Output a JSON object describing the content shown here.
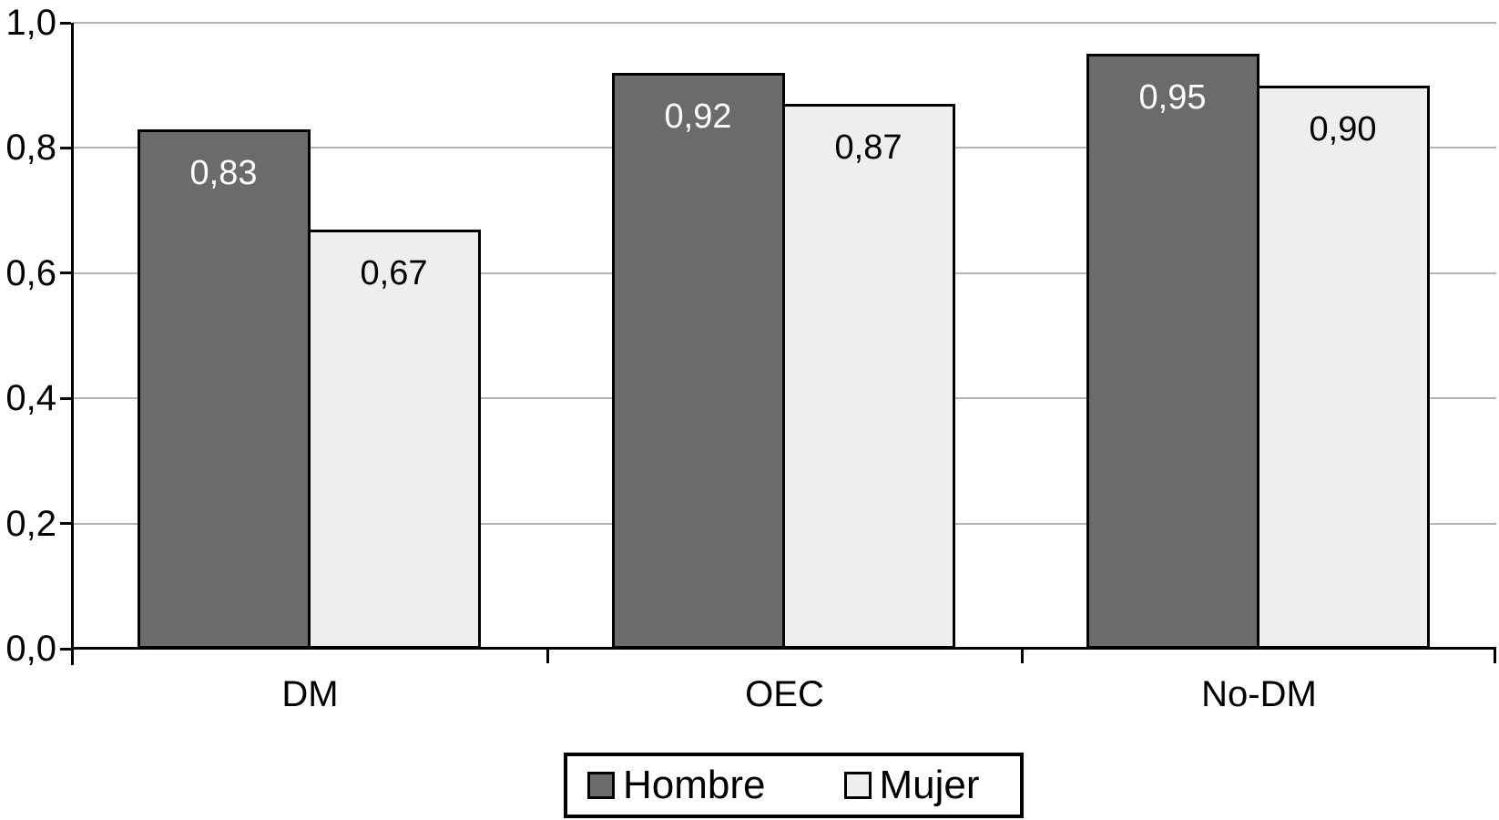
{
  "chart_data": {
    "type": "bar",
    "title": "",
    "xlabel": "",
    "ylabel": "",
    "categories": [
      "DM",
      "OEC",
      "No-DM"
    ],
    "series": [
      {
        "name": "Hombre",
        "values": [
          0.83,
          0.92,
          0.95
        ],
        "labels": [
          "0,83",
          "0,92",
          "0,95"
        ],
        "color": "#6b6b6b",
        "label_color": "#ffffff"
      },
      {
        "name": "Mujer",
        "values": [
          0.67,
          0.87,
          0.9
        ],
        "labels": [
          "0,67",
          "0,87",
          "0,90"
        ],
        "color": "#eeeeee",
        "label_color": "#000000"
      }
    ],
    "y_axis": {
      "min": 0.0,
      "max": 1.0,
      "tick_step": 0.2,
      "tick_values": [
        1.0,
        0.8,
        0.6,
        0.4,
        0.2,
        0.0
      ],
      "tick_labels": [
        "1,0",
        "0,8",
        "0,6",
        "0,4",
        "0,2",
        "0,0"
      ]
    },
    "grid": true,
    "decimal_separator": ",",
    "legend": {
      "position": "bottom",
      "entries": [
        "Hombre",
        "Mujer"
      ]
    }
  },
  "colors": {
    "bar_dark": "#6b6b6b",
    "bar_light": "#eeeeee",
    "gridline": "#b5b5b5",
    "axis": "#000000",
    "background": "#ffffff"
  }
}
